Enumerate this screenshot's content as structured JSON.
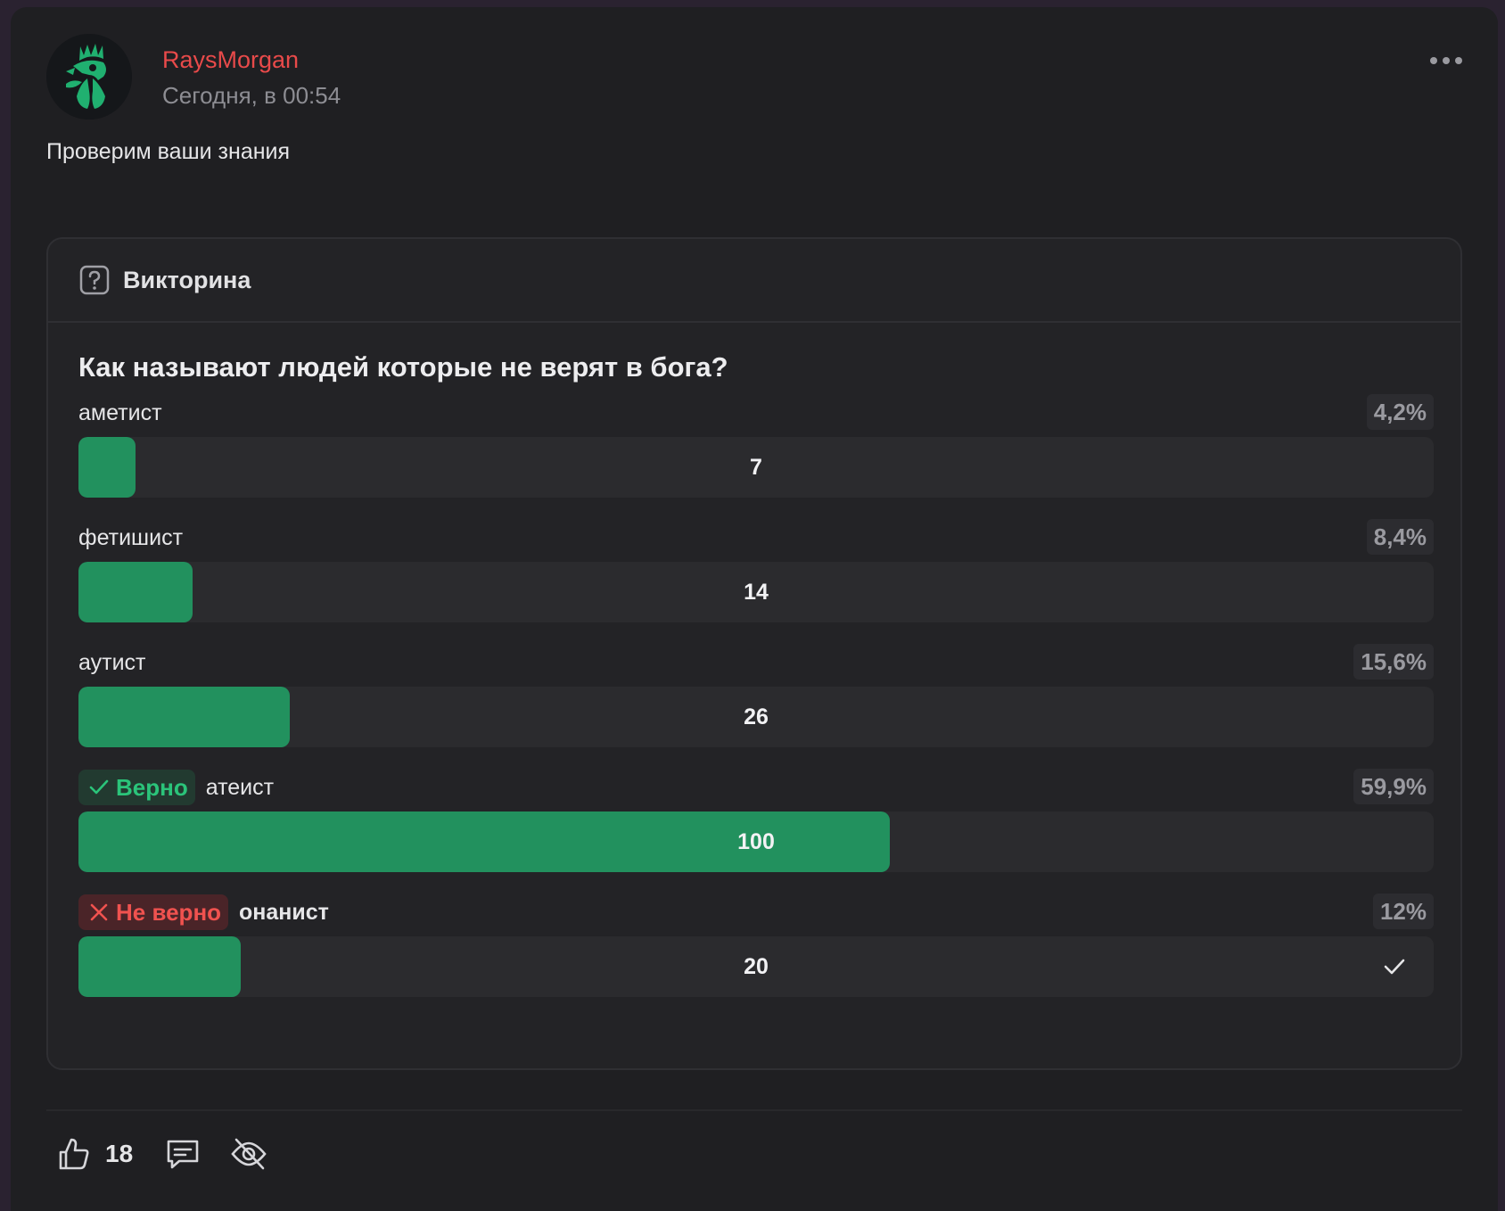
{
  "post": {
    "author": "RaysMorgan",
    "time": "Сегодня, в 00:54",
    "text": "Проверим ваши знания"
  },
  "quiz": {
    "header": "Викторина",
    "question": "Как называют людей которые не верят в бога?",
    "options": [
      {
        "label": "аметист",
        "percent": "4,2%",
        "count": "7",
        "fill_fraction": 0.042
      },
      {
        "label": "фетишист",
        "percent": "8,4%",
        "count": "14",
        "fill_fraction": 0.084
      },
      {
        "label": "аутист",
        "percent": "15,6%",
        "count": "26",
        "fill_fraction": 0.156
      },
      {
        "label": "атеист",
        "percent": "59,9%",
        "count": "100",
        "fill_fraction": 0.599,
        "badge": "Верно"
      },
      {
        "label": "онанист",
        "percent": "12%",
        "count": "20",
        "fill_fraction": 0.12,
        "badge": "Не верно",
        "selected": true
      }
    ]
  },
  "actions": {
    "likes": "18"
  },
  "colors": {
    "accent_green": "#22915e",
    "author_red": "#e84a4a",
    "correct_green": "#2bc47a",
    "wrong_red": "#f0524f"
  },
  "icons": [
    "more-dots-icon",
    "question-icon",
    "check-icon",
    "cross-icon",
    "thumbs-up-icon",
    "comment-icon",
    "eye-off-icon"
  ]
}
